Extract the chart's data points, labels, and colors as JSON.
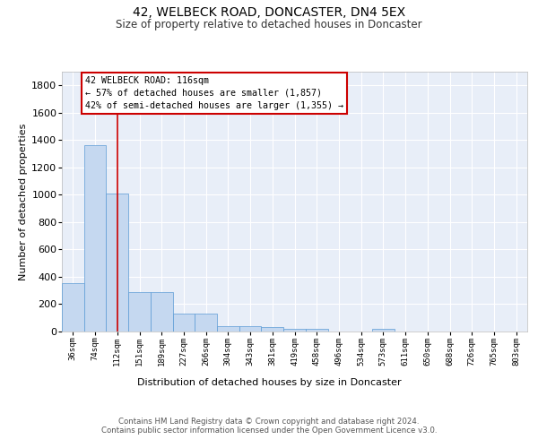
{
  "title": "42, WELBECK ROAD, DONCASTER, DN4 5EX",
  "subtitle": "Size of property relative to detached houses in Doncaster",
  "xlabel": "Distribution of detached houses by size in Doncaster",
  "ylabel": "Number of detached properties",
  "bin_labels": [
    "36sqm",
    "74sqm",
    "112sqm",
    "151sqm",
    "189sqm",
    "227sqm",
    "266sqm",
    "304sqm",
    "343sqm",
    "381sqm",
    "419sqm",
    "458sqm",
    "496sqm",
    "534sqm",
    "573sqm",
    "611sqm",
    "650sqm",
    "688sqm",
    "726sqm",
    "765sqm",
    "803sqm"
  ],
  "bar_values": [
    355,
    1360,
    1010,
    290,
    290,
    130,
    130,
    40,
    38,
    35,
    20,
    20,
    0,
    0,
    20,
    0,
    0,
    0,
    0,
    0,
    0
  ],
  "bar_color": "#c5d8f0",
  "bar_edge_color": "#5b9bd5",
  "background_color": "#e8eef8",
  "grid_color": "#ffffff",
  "red_line_x": 2.0,
  "annotation_text": "42 WELBECK ROAD: 116sqm\n← 57% of detached houses are smaller (1,857)\n42% of semi-detached houses are larger (1,355) →",
  "annotation_box_color": "#ffffff",
  "annotation_box_edge": "#cc0000",
  "footer_text": "Contains HM Land Registry data © Crown copyright and database right 2024.\nContains public sector information licensed under the Open Government Licence v3.0.",
  "ylim": [
    0,
    1900
  ],
  "yticks": [
    0,
    200,
    400,
    600,
    800,
    1000,
    1200,
    1400,
    1600,
    1800
  ]
}
